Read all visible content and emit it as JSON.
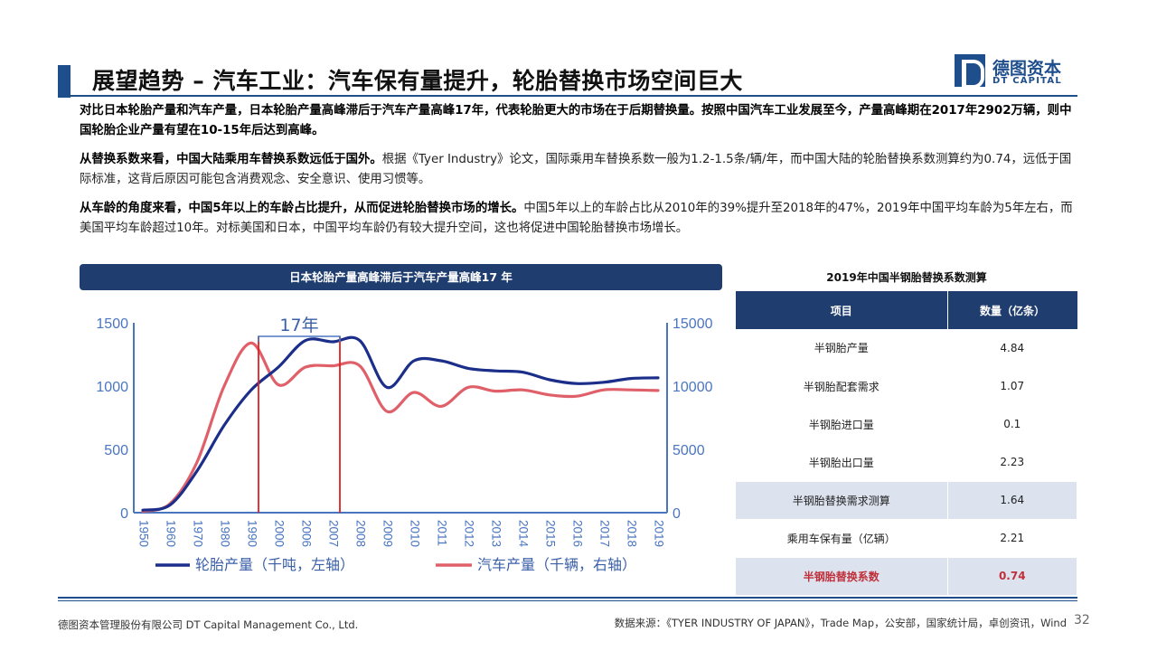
{
  "header": {
    "title": "展望趋势 – 汽车工业：汽车保有量提升，轮胎替换市场空间巨大",
    "logo_cn": "德图资本",
    "logo_en": "DT CAPITAL"
  },
  "paragraphs": {
    "p1_bold": "对比日本轮胎产量和汽车产量，日本轮胎产量高峰滞后于汽车产量高峰17年，代表轮胎更大的市场在于后期替换量。按照中国汽车工业发展至今，产量高峰期在2017年2902万辆，则中国轮胎企业产量有望在10-15年后达到高峰。",
    "p2_bold": "从替换系数来看，中国大陆乘用车替换系数远低于国外。",
    "p2_text": "根据《Tyer Industry》论文，国际乘用车替换系数一般为1.2-1.5条/辆/年，而中国大陆的轮胎替换系数测算约为0.74，远低于国际标准，这背后原因可能包含消费观念、安全意识、使用习惯等。",
    "p3_bold": "从车龄的角度来看，中国5年以上的车龄占比提升，从而促进轮胎替换市场的增长。",
    "p3_text": "中国5年以上的车龄占比从2010年的39%提升至2018年的47%，2019年中国平均车龄为5年左右，而美国平均车龄超过10年。对标美国和日本，中国平均车龄仍有较大提升空间，这也将促进中国轮胎替换市场增长。"
  },
  "chart_header": "日本轮胎产量高峰滞后于汽车产量高峰17  年",
  "chart_data": {
    "type": "line",
    "categories": [
      "1950",
      "1960",
      "1970",
      "1980",
      "1990",
      "2000",
      "2006",
      "2007",
      "2008",
      "2009",
      "2010",
      "2011",
      "2012",
      "2013",
      "2014",
      "2015",
      "2016",
      "2017",
      "2018",
      "2019"
    ],
    "series": [
      {
        "name": "轮胎产量（千吨，左轴）",
        "axis": "left",
        "color": "#1a2e8a",
        "values": [
          20,
          60,
          330,
          690,
          970,
          1150,
          1360,
          1350,
          1360,
          990,
          1200,
          1200,
          1140,
          1120,
          1110,
          1050,
          1020,
          1030,
          1060,
          1065
        ]
      },
      {
        "name": "汽车产量（千辆，右轴）",
        "axis": "right",
        "color": "#e0606a",
        "values": [
          100,
          700,
          4000,
          10000,
          13400,
          10100,
          11500,
          11600,
          11600,
          8000,
          9500,
          8400,
          9900,
          9600,
          9700,
          9300,
          9200,
          9700,
          9700,
          9650
        ]
      }
    ],
    "y_left": {
      "min": 0,
      "max": 1500,
      "ticks": [
        0,
        500,
        1000,
        1500
      ]
    },
    "y_right": {
      "min": 0,
      "max": 15000,
      "ticks": [
        0,
        5000,
        10000,
        15000
      ]
    },
    "annotation": {
      "label": "17年",
      "from_index": 4,
      "to_index": 7
    },
    "markers": [
      4,
      7
    ],
    "grid": false,
    "legend": "bottom"
  },
  "table": {
    "title": "2019年中国半钢胎替换系数测算",
    "headers": [
      "项目",
      "数量（亿条）"
    ],
    "rows": [
      {
        "item": "半钢胎产量",
        "value": "4.84"
      },
      {
        "item": "半钢胎配套需求",
        "value": "1.07"
      },
      {
        "item": "半钢胎进口量",
        "value": "0.1"
      },
      {
        "item": "半钢胎出口量",
        "value": "2.23"
      },
      {
        "item": "半钢胎替换需求测算",
        "value": "1.64"
      },
      {
        "item": "乘用车保有量（亿辆）",
        "value": "2.21"
      },
      {
        "item": "半钢胎替换系数",
        "value": "0.74"
      }
    ]
  },
  "footer": {
    "company": "德图资本管理股份有限公司 DT Capital Management Co., Ltd.",
    "source": "数据来源：《TYER INDUSTRY OF JAPAN》，Trade Map，公安部，国家统计局，卓创资讯，Wind",
    "page": "32"
  },
  "colors": {
    "brand": "#1f4e8c",
    "header_bg": "#1f3d6e",
    "red": "#e02020"
  }
}
